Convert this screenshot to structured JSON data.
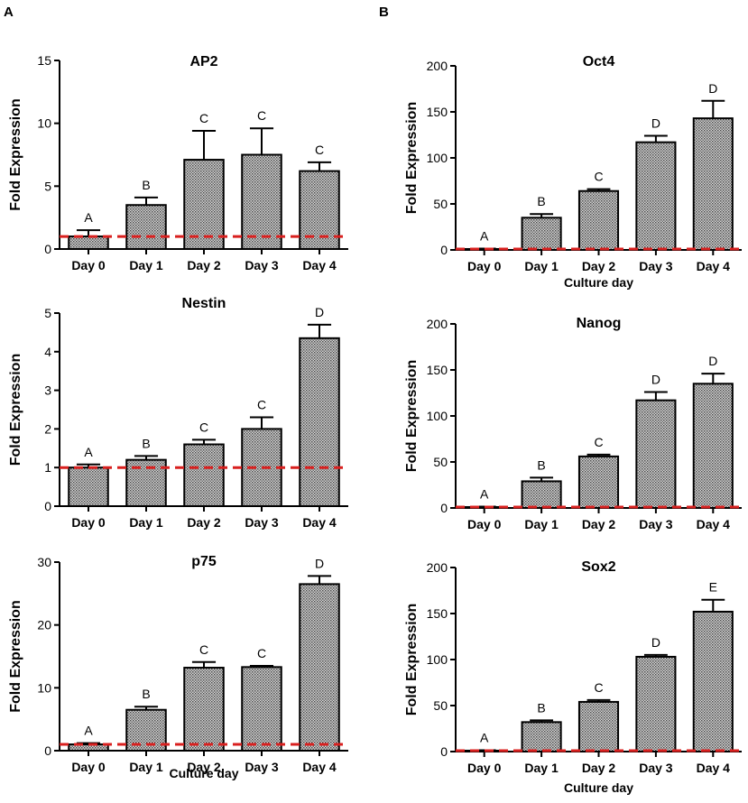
{
  "panels": [
    "A",
    "B"
  ],
  "chart_data": [
    {
      "type": "bar",
      "panel": "A",
      "title": "AP2",
      "xlabel": "",
      "ylabel": "Fold Expression",
      "ylim": [
        0,
        15
      ],
      "yticks": [
        0,
        5,
        10,
        15
      ],
      "reference_line": 1,
      "categories": [
        "Day 0",
        "Day 1",
        "Day 2",
        "Day 3",
        "Day 4"
      ],
      "values": [
        1.0,
        3.5,
        7.1,
        7.5,
        6.2
      ],
      "errors": [
        0.5,
        0.6,
        2.3,
        2.1,
        0.7
      ],
      "letters": [
        "A",
        "B",
        "C",
        "C",
        "C"
      ]
    },
    {
      "type": "bar",
      "panel": "A",
      "title": "Nestin",
      "xlabel": "",
      "ylabel": "Fold Expression",
      "ylim": [
        0,
        5
      ],
      "yticks": [
        0,
        1,
        2,
        3,
        4,
        5
      ],
      "reference_line": 1,
      "categories": [
        "Day 0",
        "Day 1",
        "Day 2",
        "Day 3",
        "Day 4"
      ],
      "values": [
        1.0,
        1.2,
        1.6,
        2.0,
        4.35
      ],
      "errors": [
        0.08,
        0.1,
        0.12,
        0.3,
        0.35
      ],
      "letters": [
        "A",
        "B",
        "C",
        "C",
        "D"
      ]
    },
    {
      "type": "bar",
      "panel": "A",
      "title": "p75",
      "xlabel": "Culture day",
      "ylabel": "Fold Expression",
      "ylim": [
        0,
        30
      ],
      "yticks": [
        0,
        10,
        20,
        30
      ],
      "reference_line": 1,
      "categories": [
        "Day 0",
        "Day 1",
        "Day 2",
        "Day 3",
        "Day 4"
      ],
      "values": [
        1.0,
        6.5,
        13.2,
        13.3,
        26.5
      ],
      "errors": [
        0.2,
        0.5,
        0.9,
        0.2,
        1.3
      ],
      "letters": [
        "A",
        "B",
        "C",
        "C",
        "D"
      ]
    },
    {
      "type": "bar",
      "panel": "B",
      "title": "Oct4",
      "xlabel": "Culture day",
      "ylabel": "Fold Expression",
      "ylim": [
        0,
        200
      ],
      "yticks": [
        0,
        50,
        100,
        150,
        200
      ],
      "reference_line": 1,
      "categories": [
        "Day 0",
        "Day 1",
        "Day 2",
        "Day 3",
        "Day 4"
      ],
      "values": [
        1,
        35,
        64,
        117,
        143
      ],
      "errors": [
        0.5,
        4,
        2,
        7,
        19
      ],
      "letters": [
        "A",
        "B",
        "C",
        "D",
        "D"
      ]
    },
    {
      "type": "bar",
      "panel": "B",
      "title": "Nanog",
      "xlabel": "",
      "ylabel": "Fold Expression",
      "ylim": [
        0,
        200
      ],
      "yticks": [
        0,
        50,
        100,
        150,
        200
      ],
      "reference_line": 1,
      "categories": [
        "Day 0",
        "Day 1",
        "Day 2",
        "Day 3",
        "Day 4"
      ],
      "values": [
        1,
        29,
        56,
        117,
        135
      ],
      "errors": [
        0.5,
        4,
        2,
        9,
        11
      ],
      "letters": [
        "A",
        "B",
        "C",
        "D",
        "D"
      ]
    },
    {
      "type": "bar",
      "panel": "B",
      "title": "Sox2",
      "xlabel": "Culture day",
      "ylabel": "Fold Expression",
      "ylim": [
        0,
        200
      ],
      "yticks": [
        0,
        50,
        100,
        150,
        200
      ],
      "reference_line": 1,
      "categories": [
        "Day 0",
        "Day 1",
        "Day 2",
        "Day 3",
        "Day 4"
      ],
      "values": [
        1,
        32,
        54,
        103,
        152
      ],
      "errors": [
        0.5,
        2,
        2,
        2,
        13
      ],
      "letters": [
        "A",
        "B",
        "C",
        "D",
        "E"
      ]
    }
  ]
}
